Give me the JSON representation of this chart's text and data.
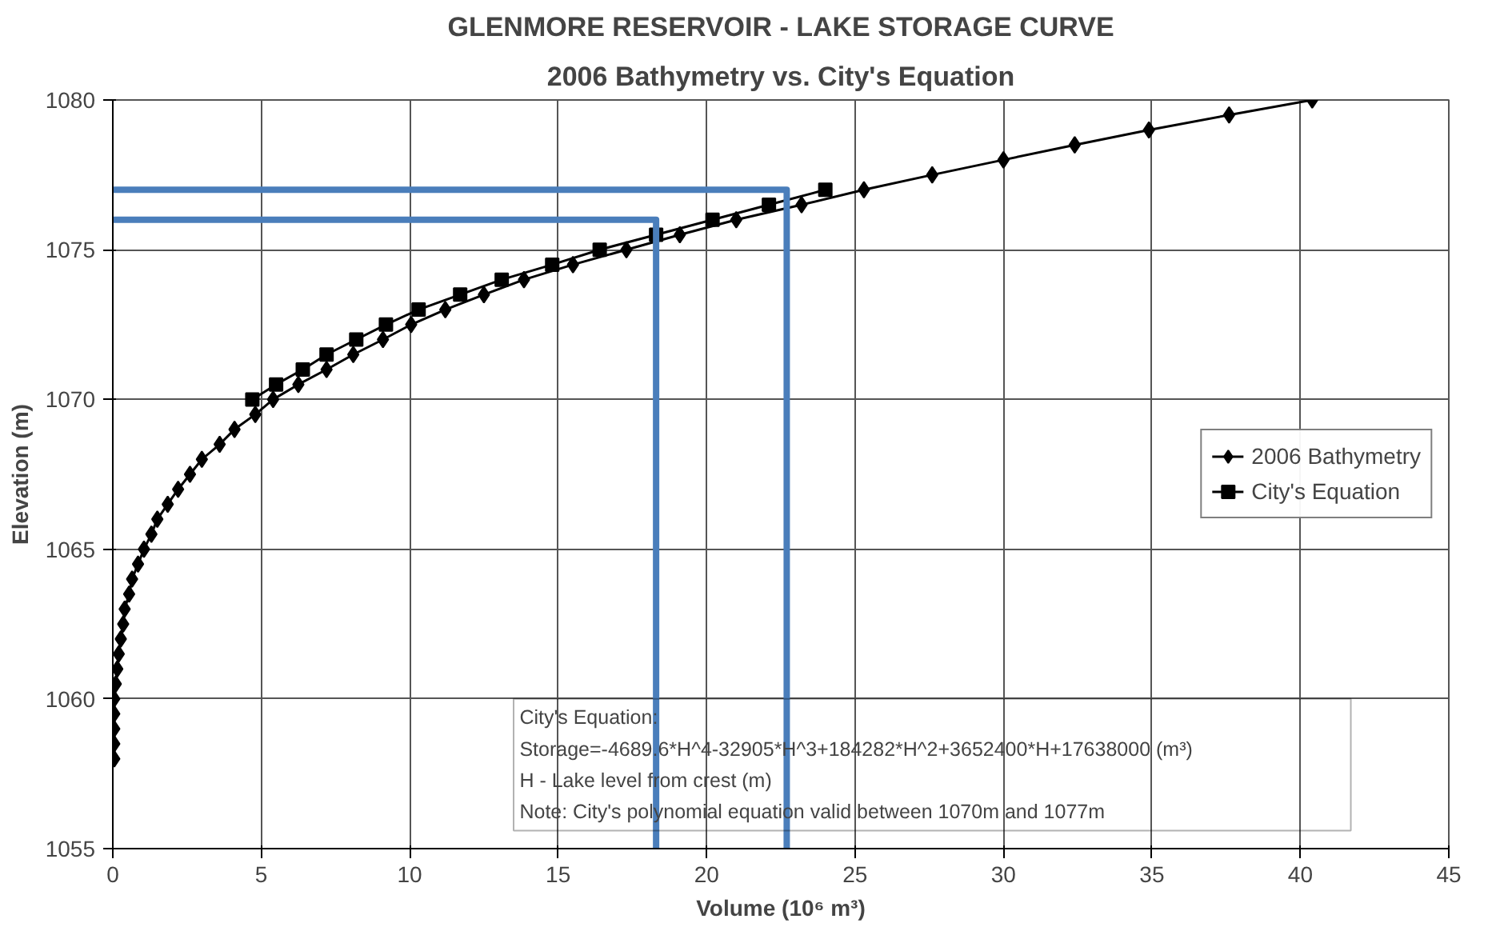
{
  "chart_data": {
    "type": "line",
    "title": "GLENMORE RESERVOIR - LAKE STORAGE CURVE",
    "subtitle": "2006 Bathymetry vs. City's Equation",
    "xlabel": "Volume (10⁶ m³)",
    "ylabel": "Elevation (m)",
    "xlim": [
      0,
      45
    ],
    "xticks": [
      0,
      5,
      10,
      15,
      20,
      25,
      30,
      35,
      40,
      45
    ],
    "ylim": [
      1055,
      1080
    ],
    "yticks": [
      1055,
      1060,
      1065,
      1070,
      1075,
      1080
    ],
    "grid": true,
    "legend": "right",
    "series": [
      {
        "name": "2006 Bathymetry",
        "color": "#000000",
        "marker": "diamond",
        "x": [
          0.05,
          0.05,
          0.05,
          0.05,
          0.05,
          0.1,
          0.15,
          0.2,
          0.27,
          0.35,
          0.4,
          0.55,
          0.65,
          0.85,
          1.05,
          1.3,
          1.5,
          1.85,
          2.2,
          2.6,
          3.0,
          3.6,
          4.1,
          4.8,
          5.4,
          6.25,
          7.2,
          8.1,
          9.1,
          10.05,
          11.2,
          12.5,
          13.85,
          15.5,
          17.3,
          19.1,
          21.0,
          23.2,
          25.3,
          27.6,
          30.0,
          32.4,
          34.9,
          37.6,
          40.4
        ],
        "values": [
          1058,
          1058.5,
          1059,
          1059.5,
          1060,
          1060.5,
          1061,
          1061.5,
          1062,
          1062.5,
          1063,
          1063.5,
          1064,
          1064.5,
          1065,
          1065.5,
          1066,
          1066.5,
          1067,
          1067.5,
          1068,
          1068.5,
          1069,
          1069.5,
          1070,
          1070.5,
          1071,
          1071.5,
          1072,
          1072.5,
          1073,
          1073.5,
          1074,
          1074.5,
          1075,
          1075.5,
          1076,
          1076.5,
          1077,
          1077.5,
          1078,
          1078.5,
          1079,
          1079.5,
          1080
        ]
      },
      {
        "name": "City's Equation",
        "color": "#000000",
        "marker": "square",
        "x": [
          4.7,
          5.5,
          6.4,
          7.2,
          8.2,
          9.2,
          10.3,
          11.7,
          13.1,
          14.8,
          16.4,
          18.3,
          20.2,
          22.1,
          24.0
        ],
        "values": [
          1070,
          1070.5,
          1071,
          1071.5,
          1072,
          1072.5,
          1073,
          1073.5,
          1074,
          1074.5,
          1075,
          1075.5,
          1076,
          1076.5,
          1077
        ]
      },
      {
        "color": "#4a7ebb",
        "marker": "none",
        "x": [
          0,
          18.3,
          18.3
        ],
        "values": [
          1076,
          1076,
          1055
        ]
      },
      {
        "color": "#4a7ebb",
        "marker": "none",
        "x": [
          0,
          22.7,
          22.7
        ],
        "values": [
          1077,
          1077,
          1055
        ]
      }
    ],
    "annotations": [
      "City's Equation:",
      "Storage=-4689.6*H^4-32905*H^3+184282*H^2+3652400*H+17638000 (m³)",
      "H - Lake level from crest (m)",
      "Note: City's polynomial equation valid between 1070m and 1077m"
    ]
  }
}
